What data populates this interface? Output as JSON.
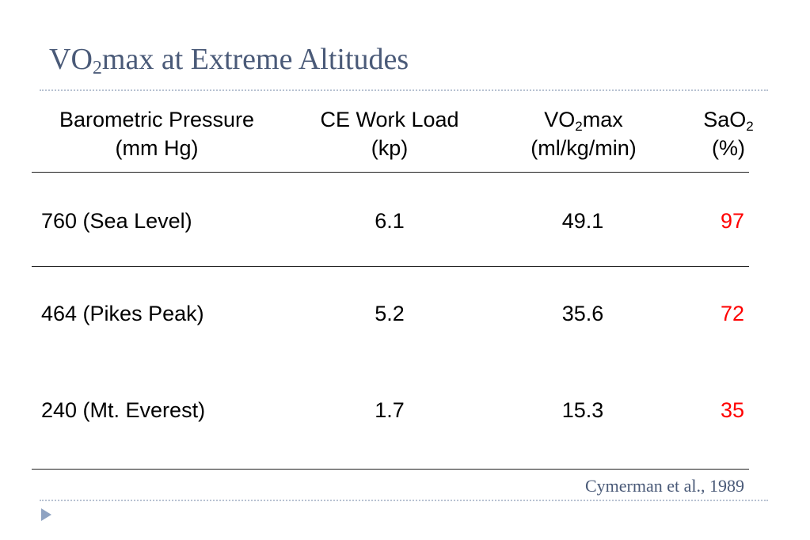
{
  "title": {
    "prefix": "VO",
    "subscript": "2",
    "suffix": "max at Extreme Altitudes"
  },
  "table": {
    "headers": [
      {
        "line1": "Barometric Pressure",
        "line2": "(mm Hg)"
      },
      {
        "line1": "CE Work Load",
        "line2": "(kp)"
      },
      {
        "line1_prefix": "VO",
        "line1_sub": "2",
        "line1_suffix": "max",
        "line2": "(ml/kg/min)"
      },
      {
        "line1_prefix": "SaO",
        "line1_sub": "2",
        "line2": "(%)"
      }
    ],
    "rows": [
      {
        "pressure": "760 (Sea Level)",
        "work_load": "6.1",
        "vo2max": "49.1",
        "sao2": "97"
      },
      {
        "pressure": "464 (Pikes Peak)",
        "work_load": "5.2",
        "vo2max": "35.6",
        "sao2": "72"
      },
      {
        "pressure": "240 (Mt. Everest)",
        "work_load": "1.7",
        "vo2max": "15.3",
        "sao2": "35"
      }
    ]
  },
  "citation": "Cymerman et al., 1989",
  "colors": {
    "title": "#4a5a78",
    "highlight_values": "#ff0000",
    "bullet": "#8fa3c2"
  },
  "icons": {
    "bullet": "triangle-right-icon"
  }
}
